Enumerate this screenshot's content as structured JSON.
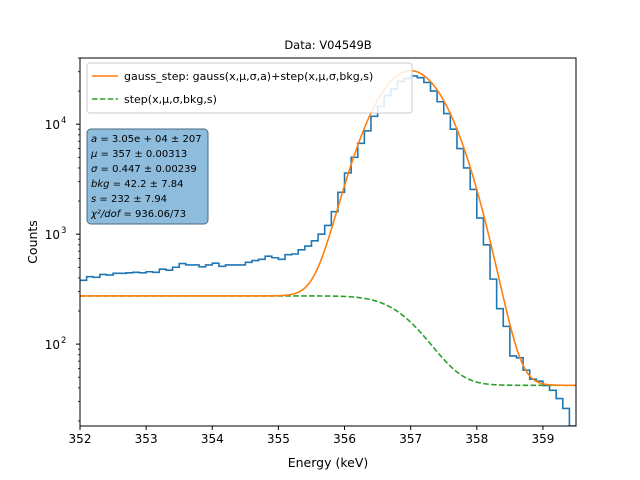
{
  "chart_data": {
    "type": "line",
    "title": "Data: V04549B",
    "xlabel": "Energy (keV)",
    "ylabel": "Counts",
    "xlim": [
      352,
      359.5
    ],
    "ylim": [
      18,
      40000
    ],
    "yscale": "log",
    "grid": false,
    "legend_position": "top-center",
    "x_ticks": [
      352,
      353,
      354,
      355,
      356,
      357,
      358,
      359
    ],
    "y_ticks": [
      {
        "value": 100,
        "label": "10",
        "exp": "2"
      },
      {
        "value": 1000,
        "label": "10",
        "exp": "3"
      },
      {
        "value": 10000,
        "label": "10",
        "exp": "4"
      }
    ],
    "series": [
      {
        "name": "",
        "kind": "histogram-step",
        "color": "#1f77b4",
        "bin_width": 0.1,
        "bin_left_edges": [
          352.0,
          352.1,
          352.2,
          352.3,
          352.4,
          352.5,
          352.6,
          352.7,
          352.8,
          352.9,
          353.0,
          353.1,
          353.2,
          353.3,
          353.4,
          353.5,
          353.6,
          353.7,
          353.8,
          353.9,
          354.0,
          354.1,
          354.2,
          354.3,
          354.4,
          354.5,
          354.6,
          354.7,
          354.8,
          354.9,
          355.0,
          355.1,
          355.2,
          355.3,
          355.4,
          355.5,
          355.6,
          355.7,
          355.8,
          355.9,
          356.0,
          356.1,
          356.2,
          356.3,
          356.4,
          356.5,
          356.6,
          356.7,
          356.8,
          356.9,
          357.0,
          357.1,
          357.2,
          357.3,
          357.4,
          357.5,
          357.6,
          357.7,
          357.8,
          357.9,
          358.0,
          358.1,
          358.2,
          358.3,
          358.4,
          358.5,
          358.6,
          358.7,
          358.8,
          358.9,
          359.0,
          359.1,
          359.2,
          359.3,
          359.4
        ],
        "counts": [
          380,
          410,
          405,
          430,
          425,
          440,
          440,
          445,
          450,
          445,
          455,
          450,
          480,
          470,
          500,
          540,
          525,
          525,
          505,
          525,
          545,
          510,
          525,
          525,
          525,
          555,
          575,
          590,
          630,
          610,
          590,
          650,
          660,
          720,
          780,
          870,
          1000,
          1200,
          1600,
          2400,
          3600,
          5000,
          6700,
          8700,
          11800,
          14500,
          18200,
          21000,
          24500,
          26000,
          27500,
          26500,
          24000,
          20000,
          16000,
          12500,
          9000,
          6000,
          4000,
          2550,
          1400,
          800,
          390,
          210,
          145,
          78,
          75,
          58,
          48,
          46,
          42,
          38,
          32,
          26,
          18
        ]
      },
      {
        "name": "gauss_step: gauss(x,μ,σ,a)+step(x,μ,σ,bkg,s)",
        "kind": "fit",
        "color": "#ff7f0e"
      },
      {
        "name": "step(x,μ,σ,bkg,s)",
        "kind": "component",
        "color": "#2ca02c"
      }
    ],
    "fit_parameters": {
      "a": 30500,
      "mu": 357,
      "sigma": 0.447,
      "bkg": 42.2,
      "s": 232
    },
    "annotation_lines": [
      {
        "sym": "a",
        "text": " = 3.05e + 04 ± 207"
      },
      {
        "sym": "μ",
        "text": " = 357 ± 0.00313"
      },
      {
        "sym": "σ",
        "text": " = 0.447 ± 0.00239"
      },
      {
        "sym": "bkg",
        "text": " = 42.2 ± 7.84"
      },
      {
        "sym": "s",
        "text": " = 232 ± 7.94"
      },
      {
        "sym": "χ²/dof",
        "text": " = 936.06/73"
      }
    ],
    "legend_labels": [
      {
        "series": 1,
        "text": "gauss_step: gauss(x,μ,σ,a)+step(x,μ,σ,bkg,s)"
      },
      {
        "series": 2,
        "text": "step(x,μ,σ,bkg,s)"
      }
    ],
    "annotation_box_color": "#8dbcdc"
  }
}
